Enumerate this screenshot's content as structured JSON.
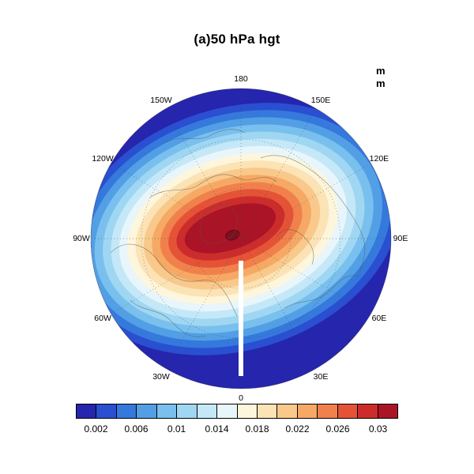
{
  "title": "(a)50 hPa hgt",
  "units": {
    "line1": "m",
    "line2": "m"
  },
  "chart_data": {
    "type": "heatmap",
    "subtype": "filled-contour-polar-stereographic-map",
    "title": "(a)50 hPa hgt",
    "units": "m",
    "projection": "north polar stereographic",
    "contour_interval": 0.002,
    "contour_levels": [
      0.002,
      0.004,
      0.006,
      0.008,
      0.01,
      0.012,
      0.014,
      0.016,
      0.018,
      0.02,
      0.022,
      0.024,
      0.026,
      0.028,
      0.03
    ],
    "colors": [
      "#2525ad",
      "#2a4fd0",
      "#3579dc",
      "#539fe6",
      "#79c0ee",
      "#9fd7f3",
      "#c4e8f8",
      "#e8f6fb",
      "#fdf6dc",
      "#fbe3b5",
      "#f9c98c",
      "#f6a964",
      "#f0814d",
      "#e55336",
      "#cc2d2c",
      "#ab1426"
    ],
    "core_color": "#7f0e1e",
    "pattern": "concentric tilted elliptical maximum centered near the pole; values decrease from >0.03 at the center to <0.002 at the map edge",
    "longitude_labels": [
      {
        "text": "180",
        "angle": 0
      },
      {
        "text": "150E",
        "angle": 30
      },
      {
        "text": "120E",
        "angle": 60
      },
      {
        "text": "90E",
        "angle": 90
      },
      {
        "text": "60E",
        "angle": 120
      },
      {
        "text": "30E",
        "angle": 150
      },
      {
        "text": "0",
        "angle": 180
      },
      {
        "text": "30W",
        "angle": 210
      },
      {
        "text": "60W",
        "angle": 240
      },
      {
        "text": "90W",
        "angle": 270
      },
      {
        "text": "120W",
        "angle": 300
      },
      {
        "text": "150W",
        "angle": 330
      }
    ],
    "colorbar_labels": [
      "0.002",
      "0.006",
      "0.01",
      "0.014",
      "0.018",
      "0.022",
      "0.026",
      "0.03"
    ]
  }
}
